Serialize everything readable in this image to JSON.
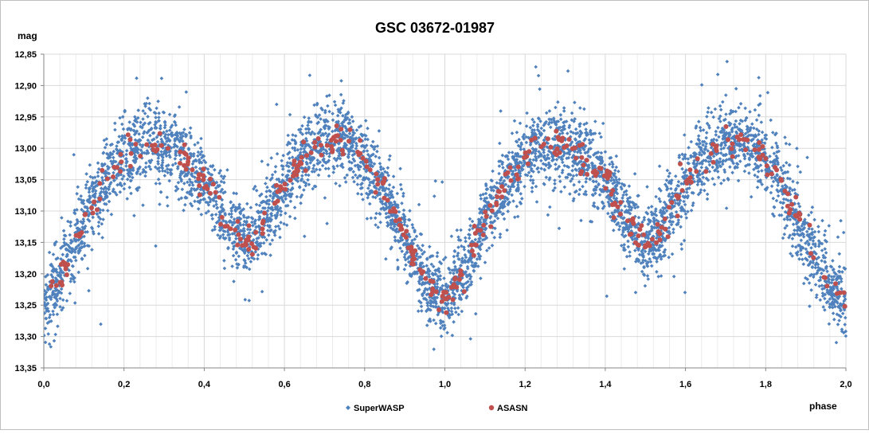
{
  "chart_data": {
    "type": "scatter",
    "title": "GSC 03672-01987",
    "xlabel": "phase",
    "ylabel": "mag",
    "xlim": [
      0.0,
      2.0
    ],
    "ylim": [
      12.85,
      13.35
    ],
    "y_inverted": true,
    "grid": true,
    "legend_position": "bottom",
    "x_tick_labels": [
      "0,0",
      "0,2",
      "0,4",
      "0,6",
      "0,8",
      "1,0",
      "1,2",
      "1,4",
      "1,6",
      "1,8",
      "2,0"
    ],
    "y_tick_labels": [
      "12,85",
      "12,90",
      "12,95",
      "13,00",
      "13,05",
      "13,10",
      "13,15",
      "13,20",
      "13,25",
      "13,30",
      "13,35"
    ],
    "series": [
      {
        "name": "SuperWASP",
        "color": "#4f81bd",
        "marker": "diamond",
        "light_curve": {
          "phase": [
            0.0,
            0.05,
            0.1,
            0.15,
            0.2,
            0.25,
            0.3,
            0.35,
            0.4,
            0.45,
            0.5,
            0.55,
            0.6,
            0.65,
            0.7,
            0.75,
            0.8,
            0.85,
            0.9,
            0.95,
            1.0
          ],
          "mag": [
            13.245,
            13.2,
            13.115,
            13.055,
            13.015,
            12.995,
            12.995,
            13.015,
            13.05,
            13.11,
            13.155,
            13.12,
            13.055,
            13.01,
            12.99,
            12.985,
            13.015,
            13.075,
            13.145,
            13.21,
            13.245
          ]
        },
        "scatter_sigma": 0.03,
        "points_per_cycle": 2600
      },
      {
        "name": "ASASN",
        "color": "#c0504d",
        "marker": "circle",
        "light_curve": {
          "phase": [
            0.0,
            0.05,
            0.1,
            0.15,
            0.2,
            0.25,
            0.3,
            0.35,
            0.4,
            0.45,
            0.5,
            0.55,
            0.6,
            0.65,
            0.7,
            0.75,
            0.8,
            0.85,
            0.9,
            0.95,
            1.0
          ],
          "mag": [
            13.245,
            13.2,
            13.115,
            13.055,
            13.015,
            12.995,
            12.995,
            13.015,
            13.05,
            13.11,
            13.155,
            13.12,
            13.055,
            13.01,
            12.99,
            12.985,
            13.015,
            13.075,
            13.145,
            13.21,
            13.245
          ]
        },
        "scatter_sigma": 0.012,
        "points_per_cycle": 210
      }
    ]
  }
}
